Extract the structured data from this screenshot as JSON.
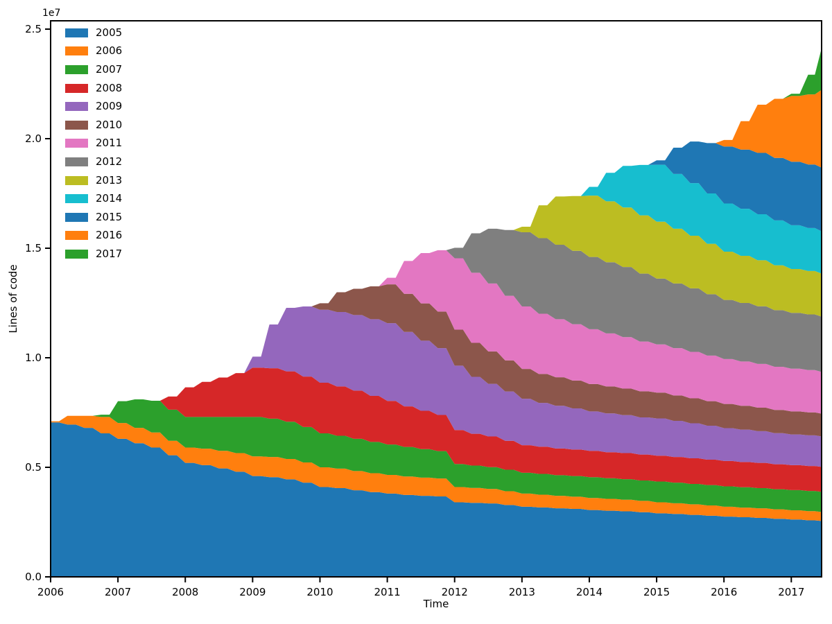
{
  "figure": {
    "offset_text": "1e7"
  },
  "chart_data": {
    "type": "area",
    "stacked": true,
    "title": "",
    "xlabel": "Time",
    "ylabel": "Lines of code",
    "values_unit": "millions of lines of code (axis shown as 1e7)",
    "grid": false,
    "legend_position": "upper-left",
    "xlim": [
      2006,
      2017.45
    ],
    "ylim_millions": [
      0,
      25.38
    ],
    "xticks": [
      2006,
      2007,
      2008,
      2009,
      2010,
      2011,
      2012,
      2013,
      2014,
      2015,
      2016,
      2017
    ],
    "yticks_e7": [
      {
        "value": 0.0,
        "label": "0.0"
      },
      {
        "value": 0.5,
        "label": "0.5"
      },
      {
        "value": 1.0,
        "label": "1.0"
      },
      {
        "value": 1.5,
        "label": "1.5"
      },
      {
        "value": 2.0,
        "label": "2.0"
      },
      {
        "value": 2.5,
        "label": "2.5"
      }
    ],
    "x": [
      2006.0,
      2006.25,
      2006.5,
      2006.75,
      2007.0,
      2007.25,
      2007.5,
      2007.75,
      2008.0,
      2008.25,
      2008.5,
      2008.75,
      2009.0,
      2009.25,
      2009.5,
      2009.75,
      2010.0,
      2010.25,
      2010.5,
      2010.75,
      2011.0,
      2011.25,
      2011.5,
      2011.75,
      2012.0,
      2012.25,
      2012.5,
      2012.75,
      2013.0,
      2013.25,
      2013.5,
      2013.75,
      2014.0,
      2014.25,
      2014.5,
      2014.75,
      2015.0,
      2015.25,
      2015.5,
      2015.75,
      2016.0,
      2016.25,
      2016.5,
      2016.75,
      2017.0,
      2017.25,
      2017.45
    ],
    "series": [
      {
        "name": "2005",
        "color": "#1f77b4",
        "values": [
          7.05,
          6.95,
          6.8,
          6.55,
          6.3,
          6.1,
          5.9,
          5.55,
          5.2,
          5.1,
          4.95,
          4.8,
          4.6,
          4.55,
          4.45,
          4.3,
          4.1,
          4.05,
          3.95,
          3.87,
          3.8,
          3.74,
          3.7,
          3.67,
          3.4,
          3.38,
          3.35,
          3.28,
          3.2,
          3.17,
          3.13,
          3.1,
          3.05,
          3.02,
          2.99,
          2.95,
          2.9,
          2.87,
          2.83,
          2.79,
          2.75,
          2.72,
          2.69,
          2.65,
          2.62,
          2.58,
          2.55
        ]
      },
      {
        "name": "2006",
        "color": "#ff7f0e",
        "values": [
          0.05,
          0.4,
          0.55,
          0.75,
          0.72,
          0.7,
          0.69,
          0.66,
          0.7,
          0.75,
          0.8,
          0.85,
          0.9,
          0.92,
          0.93,
          0.92,
          0.9,
          0.89,
          0.88,
          0.86,
          0.85,
          0.84,
          0.83,
          0.82,
          0.7,
          0.68,
          0.66,
          0.63,
          0.6,
          0.58,
          0.57,
          0.56,
          0.55,
          0.54,
          0.53,
          0.52,
          0.5,
          0.49,
          0.48,
          0.47,
          0.45,
          0.44,
          0.44,
          0.43,
          0.42,
          0.42,
          0.41
        ]
      },
      {
        "name": "2007",
        "color": "#2ca02c",
        "values": [
          0,
          0,
          0,
          0.1,
          1.0,
          1.3,
          1.45,
          1.42,
          1.4,
          1.45,
          1.55,
          1.65,
          1.8,
          1.75,
          1.7,
          1.62,
          1.55,
          1.5,
          1.47,
          1.43,
          1.39,
          1.35,
          1.3,
          1.25,
          1.05,
          1.02,
          1.0,
          0.98,
          0.95,
          0.95,
          0.94,
          0.94,
          0.95,
          0.94,
          0.94,
          0.93,
          0.95,
          0.94,
          0.93,
          0.93,
          0.93,
          0.93,
          0.92,
          0.92,
          0.92,
          0.92,
          0.92
        ]
      },
      {
        "name": "2008",
        "color": "#d62728",
        "values": [
          0,
          0,
          0,
          0,
          0,
          0,
          0,
          0.6,
          1.35,
          1.6,
          1.8,
          2.0,
          2.25,
          2.3,
          2.3,
          2.3,
          2.31,
          2.25,
          2.2,
          2.1,
          1.99,
          1.85,
          1.75,
          1.65,
          1.55,
          1.45,
          1.4,
          1.32,
          1.26,
          1.24,
          1.22,
          1.21,
          1.2,
          1.19,
          1.19,
          1.18,
          1.18,
          1.17,
          1.17,
          1.16,
          1.16,
          1.15,
          1.15,
          1.14,
          1.14,
          1.14,
          1.14
        ]
      },
      {
        "name": "2009",
        "color": "#9467bd",
        "values": [
          0,
          0,
          0,
          0,
          0,
          0,
          0,
          0,
          0,
          0,
          0,
          0,
          0.5,
          2.0,
          2.9,
          3.2,
          3.33,
          3.4,
          3.45,
          3.5,
          3.55,
          3.4,
          3.2,
          3.05,
          2.94,
          2.6,
          2.4,
          2.25,
          2.12,
          2.0,
          1.95,
          1.88,
          1.8,
          1.77,
          1.73,
          1.7,
          1.7,
          1.65,
          1.6,
          1.55,
          1.5,
          1.48,
          1.45,
          1.42,
          1.4,
          1.4,
          1.39
        ]
      },
      {
        "name": "2010",
        "color": "#8c564b",
        "values": [
          0,
          0,
          0,
          0,
          0,
          0,
          0,
          0,
          0,
          0,
          0,
          0,
          0,
          0,
          0,
          0,
          0.3,
          0.9,
          1.2,
          1.5,
          1.77,
          1.74,
          1.7,
          1.67,
          1.64,
          1.55,
          1.48,
          1.42,
          1.36,
          1.32,
          1.3,
          1.27,
          1.25,
          1.23,
          1.21,
          1.19,
          1.18,
          1.16,
          1.14,
          1.12,
          1.1,
          1.09,
          1.07,
          1.06,
          1.05,
          1.05,
          1.04
        ]
      },
      {
        "name": "2011",
        "color": "#e377c2",
        "values": [
          0,
          0,
          0,
          0,
          0,
          0,
          0,
          0,
          0,
          0,
          0,
          0,
          0,
          0,
          0,
          0,
          0,
          0,
          0,
          0,
          0.3,
          1.5,
          2.3,
          2.8,
          3.26,
          3.2,
          3.1,
          2.95,
          2.85,
          2.75,
          2.65,
          2.57,
          2.5,
          2.42,
          2.35,
          2.27,
          2.2,
          2.16,
          2.12,
          2.08,
          2.05,
          2.02,
          2.0,
          1.97,
          1.95,
          1.93,
          1.9
        ]
      },
      {
        "name": "2012",
        "color": "#7f7f7f",
        "values": [
          0,
          0,
          0,
          0,
          0,
          0,
          0,
          0,
          0,
          0,
          0,
          0,
          0,
          0,
          0,
          0,
          0,
          0,
          0,
          0,
          0,
          0,
          0,
          0,
          0.48,
          1.8,
          2.5,
          3.0,
          3.39,
          3.45,
          3.4,
          3.35,
          3.3,
          3.25,
          3.2,
          3.1,
          3.0,
          2.95,
          2.9,
          2.8,
          2.7,
          2.67,
          2.63,
          2.58,
          2.55,
          2.54,
          2.53
        ]
      },
      {
        "name": "2013",
        "color": "#bcbd22",
        "values": [
          0,
          0,
          0,
          0,
          0,
          0,
          0,
          0,
          0,
          0,
          0,
          0,
          0,
          0,
          0,
          0,
          0,
          0,
          0,
          0,
          0,
          0,
          0,
          0,
          0,
          0,
          0,
          0,
          0.25,
          1.5,
          2.2,
          2.5,
          2.8,
          2.78,
          2.72,
          2.66,
          2.6,
          2.5,
          2.4,
          2.3,
          2.2,
          2.15,
          2.1,
          2.05,
          2.0,
          1.98,
          1.96
        ]
      },
      {
        "name": "2014",
        "color": "#17becf",
        "values": [
          0,
          0,
          0,
          0,
          0,
          0,
          0,
          0,
          0,
          0,
          0,
          0,
          0,
          0,
          0,
          0,
          0,
          0,
          0,
          0,
          0,
          0,
          0,
          0,
          0,
          0,
          0,
          0,
          0,
          0,
          0,
          0,
          0.4,
          1.3,
          1.9,
          2.3,
          2.6,
          2.5,
          2.4,
          2.3,
          2.2,
          2.15,
          2.1,
          2.05,
          2.0,
          1.96,
          1.93
        ]
      },
      {
        "name": "2015",
        "color": "#1f77b4",
        "values": [
          0,
          0,
          0,
          0,
          0,
          0,
          0,
          0,
          0,
          0,
          0,
          0,
          0,
          0,
          0,
          0,
          0,
          0,
          0,
          0,
          0,
          0,
          0,
          0,
          0,
          0,
          0,
          0,
          0,
          0,
          0,
          0,
          0,
          0,
          0,
          0,
          0.2,
          1.2,
          1.9,
          2.3,
          2.6,
          2.7,
          2.8,
          2.85,
          2.9,
          2.9,
          2.91
        ]
      },
      {
        "name": "2016",
        "color": "#ff7f0e",
        "values": [
          0,
          0,
          0,
          0,
          0,
          0,
          0,
          0,
          0,
          0,
          0,
          0,
          0,
          0,
          0,
          0,
          0,
          0,
          0,
          0,
          0,
          0,
          0,
          0,
          0,
          0,
          0,
          0,
          0,
          0,
          0,
          0,
          0,
          0,
          0,
          0,
          0,
          0,
          0,
          0,
          0.3,
          1.3,
          2.2,
          2.7,
          3.0,
          3.2,
          3.55
        ]
      },
      {
        "name": "2017",
        "color": "#2ca02c",
        "values": [
          0,
          0,
          0,
          0,
          0,
          0,
          0,
          0,
          0,
          0,
          0,
          0,
          0,
          0,
          0,
          0,
          0,
          0,
          0,
          0,
          0,
          0,
          0,
          0,
          0,
          0,
          0,
          0,
          0,
          0,
          0,
          0,
          0,
          0,
          0,
          0,
          0,
          0,
          0,
          0,
          0,
          0,
          0,
          0,
          0.1,
          0.9,
          1.9
        ]
      }
    ]
  }
}
